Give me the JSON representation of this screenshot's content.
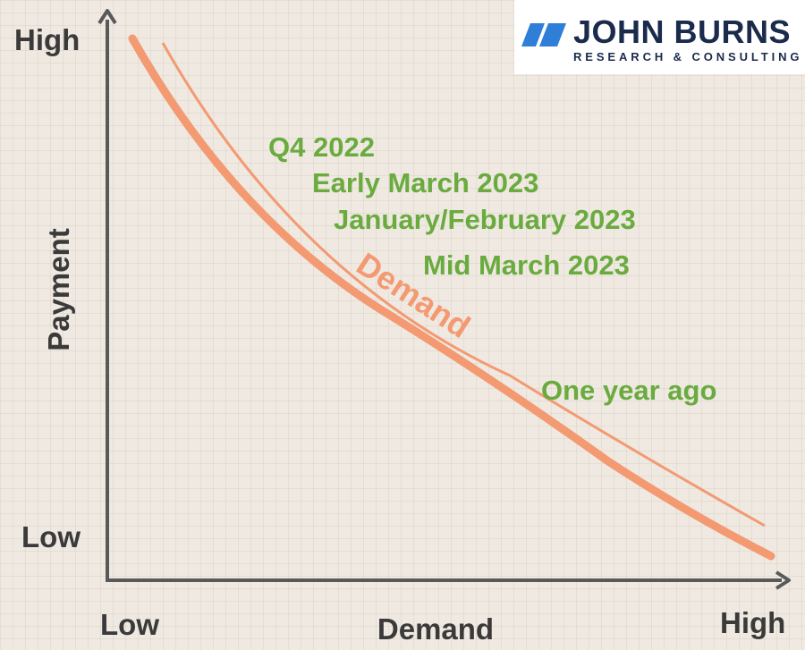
{
  "axes": {
    "y_title": "Payment",
    "y_high": "High",
    "y_low": "Low",
    "x_title": "Demand",
    "x_low": "Low",
    "x_high": "High"
  },
  "curves": {
    "demand_label": "Demand",
    "color": "#f39a72"
  },
  "labels": {
    "color": "#6aab3f",
    "items": [
      "Q4 2022",
      "Early March 2023",
      "January/February 2023",
      "Mid March 2023",
      "One year ago"
    ]
  },
  "logo": {
    "name": "JOHN BURNS",
    "tagline": "RESEARCH & CONSULTING",
    "brand_color": "#1a2b4c",
    "mark_color": "#2f7ed8"
  }
}
